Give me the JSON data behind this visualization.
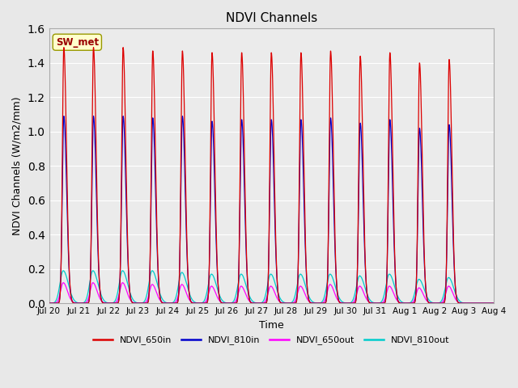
{
  "title": "NDVI Channels",
  "xlabel": "Time",
  "ylabel": "NDVI Channels (W/m2/mm)",
  "ylim": [
    0.0,
    1.6
  ],
  "yticks": [
    0.0,
    0.2,
    0.4,
    0.6,
    0.8,
    1.0,
    1.2,
    1.4,
    1.6
  ],
  "fig_facecolor": "#e8e8e8",
  "plot_bg_color": "#ebebeb",
  "annotation_text": "SW_met",
  "annotation_bg": "#ffffcc",
  "annotation_border": "#999900",
  "annotation_text_color": "#990000",
  "legend_entries": [
    "NDVI_650in",
    "NDVI_810in",
    "NDVI_650out",
    "NDVI_810out"
  ],
  "legend_colors": [
    "#dd0000",
    "#0000cc",
    "#ff00ff",
    "#00cccc"
  ],
  "num_peaks": 14,
  "peaks_650in": [
    1.49,
    1.49,
    1.49,
    1.47,
    1.47,
    1.46,
    1.46,
    1.46,
    1.46,
    1.47,
    1.44,
    1.46,
    1.4,
    1.42
  ],
  "peaks_810in": [
    1.09,
    1.09,
    1.09,
    1.08,
    1.09,
    1.06,
    1.07,
    1.07,
    1.07,
    1.08,
    1.05,
    1.07,
    1.02,
    1.04
  ],
  "peaks_650out": [
    0.12,
    0.12,
    0.12,
    0.11,
    0.11,
    0.1,
    0.1,
    0.1,
    0.1,
    0.11,
    0.1,
    0.1,
    0.09,
    0.1
  ],
  "peaks_810out": [
    0.19,
    0.19,
    0.19,
    0.19,
    0.18,
    0.17,
    0.17,
    0.17,
    0.17,
    0.17,
    0.16,
    0.17,
    0.14,
    0.15
  ],
  "x_tick_labels": [
    "Jul 20",
    "Jul 21",
    "Jul 22",
    "Jul 23",
    "Jul 24",
    "Jul 25",
    "Jul 26",
    "Jul 27",
    "Jul 28",
    "Jul 29",
    "Jul 30",
    "Jul 31",
    "Aug 1",
    "Aug 2",
    "Aug 3",
    "Aug 4"
  ],
  "x_tick_positions": [
    0,
    1,
    2,
    3,
    4,
    5,
    6,
    7,
    8,
    9,
    10,
    11,
    12,
    13,
    14,
    15
  ]
}
